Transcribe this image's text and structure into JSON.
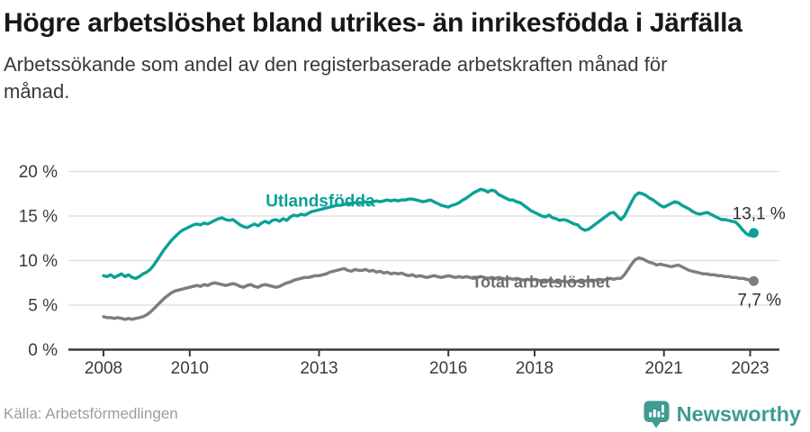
{
  "footer": {
    "brand": "Newsworthy"
  },
  "colors": {
    "accent_teal": "#0aa195",
    "series_gray": "#7d7d7d",
    "brand_teal": "#3e9c92",
    "axis_text": "#3b3b3b",
    "grid": "#dcdcdc",
    "axis_line": "#3a3a3a"
  },
  "chart_data": {
    "type": "line",
    "title": "Högre arbetslöshet bland utrikes- än inrikesfödda i Järfälla",
    "subtitle": "Arbetssökande som andel av den registerbaserade arbetskraften månad för månad.",
    "source": "Källa: Arbetsförmedlingen",
    "x_start_year": 2008,
    "x_frequency": "monthly",
    "x_end": "2023-02",
    "xlim": [
      2007.19,
      2023.68
    ],
    "ylim": [
      0,
      20
    ],
    "grid": true,
    "legend_position": "inline-labels",
    "yticks": [
      {
        "value": 0,
        "label": "0 %"
      },
      {
        "value": 5,
        "label": "5 %"
      },
      {
        "value": 10,
        "label": "10 %"
      },
      {
        "value": 15,
        "label": "15 %"
      },
      {
        "value": 20,
        "label": "20 %"
      }
    ],
    "xticks": [
      {
        "value": 2008,
        "label": "2008"
      },
      {
        "value": 2010,
        "label": "2010"
      },
      {
        "value": 2013,
        "label": "2013"
      },
      {
        "value": 2016,
        "label": "2016"
      },
      {
        "value": 2018,
        "label": "2018"
      },
      {
        "value": 2021,
        "label": "2021"
      },
      {
        "value": 2023,
        "label": "2023"
      }
    ],
    "series": [
      {
        "name": "Utlandsfödda",
        "color": "#0aa195",
        "end_dot": true,
        "end_value": 13.1,
        "end_value_label": "13,1 %",
        "values": [
          8.3,
          8.2,
          8.4,
          8.1,
          8.3,
          8.5,
          8.2,
          8.4,
          8.1,
          8.0,
          8.2,
          8.5,
          8.7,
          9.0,
          9.5,
          10.1,
          10.7,
          11.3,
          11.8,
          12.3,
          12.7,
          13.1,
          13.4,
          13.6,
          13.8,
          14.0,
          14.1,
          14.0,
          14.2,
          14.1,
          14.3,
          14.5,
          14.7,
          14.8,
          14.6,
          14.5,
          14.6,
          14.3,
          14.0,
          13.8,
          13.7,
          13.9,
          14.1,
          13.9,
          14.2,
          14.4,
          14.2,
          14.5,
          14.6,
          14.4,
          14.7,
          14.5,
          14.9,
          15.1,
          15.0,
          15.2,
          15.1,
          15.3,
          15.5,
          15.6,
          15.7,
          15.8,
          15.9,
          16.0,
          16.1,
          16.2,
          16.2,
          16.3,
          16.4,
          16.4,
          16.5,
          16.5,
          16.5,
          16.6,
          16.5,
          16.6,
          16.7,
          16.6,
          16.7,
          16.8,
          16.7,
          16.8,
          16.7,
          16.8,
          16.8,
          16.9,
          16.9,
          16.8,
          16.7,
          16.6,
          16.7,
          16.8,
          16.6,
          16.4,
          16.2,
          16.1,
          16.0,
          16.2,
          16.3,
          16.5,
          16.8,
          17.0,
          17.3,
          17.6,
          17.8,
          18.0,
          17.9,
          17.7,
          17.9,
          17.8,
          17.4,
          17.2,
          17.0,
          16.8,
          16.8,
          16.6,
          16.5,
          16.2,
          15.9,
          15.6,
          15.4,
          15.2,
          15.0,
          14.9,
          15.1,
          14.8,
          14.7,
          14.5,
          14.6,
          14.5,
          14.3,
          14.1,
          14.0,
          13.6,
          13.4,
          13.5,
          13.8,
          14.1,
          14.4,
          14.7,
          15.0,
          15.3,
          15.4,
          15.0,
          14.6,
          15.0,
          15.8,
          16.6,
          17.3,
          17.6,
          17.5,
          17.3,
          17.0,
          16.8,
          16.5,
          16.2,
          16.0,
          16.2,
          16.4,
          16.6,
          16.5,
          16.2,
          16.0,
          15.8,
          15.5,
          15.3,
          15.2,
          15.3,
          15.4,
          15.2,
          15.0,
          14.8,
          14.6,
          14.6,
          14.5,
          14.4,
          14.3,
          13.9,
          13.4,
          13.0,
          12.8,
          13.1
        ]
      },
      {
        "name": "Total arbetslöshet",
        "color": "#7d7d7d",
        "end_dot": true,
        "end_value": 7.7,
        "end_value_label": "7,7 %",
        "values": [
          3.7,
          3.6,
          3.6,
          3.5,
          3.6,
          3.5,
          3.4,
          3.5,
          3.4,
          3.5,
          3.6,
          3.7,
          3.9,
          4.2,
          4.6,
          5.0,
          5.4,
          5.8,
          6.1,
          6.4,
          6.6,
          6.7,
          6.8,
          6.9,
          7.0,
          7.1,
          7.2,
          7.1,
          7.3,
          7.2,
          7.4,
          7.5,
          7.4,
          7.3,
          7.2,
          7.3,
          7.4,
          7.3,
          7.1,
          7.0,
          7.2,
          7.3,
          7.1,
          7.0,
          7.2,
          7.3,
          7.2,
          7.1,
          7.0,
          7.1,
          7.3,
          7.5,
          7.6,
          7.8,
          7.9,
          8.0,
          8.1,
          8.1,
          8.2,
          8.3,
          8.3,
          8.4,
          8.5,
          8.7,
          8.8,
          8.9,
          9.0,
          9.1,
          8.9,
          8.8,
          9.0,
          8.9,
          8.9,
          9.0,
          8.8,
          8.9,
          8.7,
          8.8,
          8.6,
          8.7,
          8.5,
          8.6,
          8.5,
          8.6,
          8.4,
          8.3,
          8.4,
          8.2,
          8.3,
          8.2,
          8.1,
          8.2,
          8.3,
          8.2,
          8.1,
          8.2,
          8.3,
          8.2,
          8.1,
          8.2,
          8.1,
          8.2,
          8.1,
          8.0,
          8.1,
          8.2,
          8.1,
          8.0,
          8.1,
          8.0,
          8.1,
          8.0,
          7.9,
          8.0,
          7.9,
          8.0,
          7.9,
          7.8,
          7.9,
          7.8,
          7.9,
          7.8,
          7.7,
          7.8,
          7.7,
          7.6,
          7.7,
          7.6,
          7.7,
          7.6,
          7.7,
          7.6,
          7.7,
          7.6,
          7.7,
          7.8,
          7.7,
          7.8,
          7.9,
          7.8,
          7.9,
          8.0,
          7.9,
          8.0,
          8.0,
          8.4,
          9.0,
          9.6,
          10.1,
          10.3,
          10.2,
          10.0,
          9.8,
          9.7,
          9.5,
          9.6,
          9.5,
          9.4,
          9.3,
          9.4,
          9.5,
          9.3,
          9.1,
          8.9,
          8.8,
          8.7,
          8.6,
          8.5,
          8.5,
          8.4,
          8.4,
          8.3,
          8.3,
          8.2,
          8.2,
          8.1,
          8.1,
          8.0,
          8.0,
          7.9,
          7.8,
          7.7
        ]
      }
    ],
    "annotations": [
      {
        "name": "series-label-utlandsfodda",
        "text": "Utlandsfödda",
        "x": 2013.03,
        "y": 16.72,
        "color": "#0aa195",
        "size": 19,
        "weight": 700,
        "anchor": "middle"
      },
      {
        "name": "series-label-total",
        "text": "Total arbetslöshet",
        "x": 2018.15,
        "y": 7.6,
        "color": "#6e6e6e",
        "size": 18,
        "weight": 700,
        "anchor": "middle"
      },
      {
        "name": "value-label-utlandsfodda",
        "text": "13,1 %",
        "x": 2023.82,
        "y": 15.3,
        "color": "#2d2d2d",
        "size": 19,
        "weight": 400,
        "anchor": "end"
      },
      {
        "name": "value-label-total",
        "text": "7,7 %",
        "x": 2023.72,
        "y": 5.6,
        "color": "#2d2d2d",
        "size": 19,
        "weight": 400,
        "anchor": "end"
      }
    ]
  }
}
